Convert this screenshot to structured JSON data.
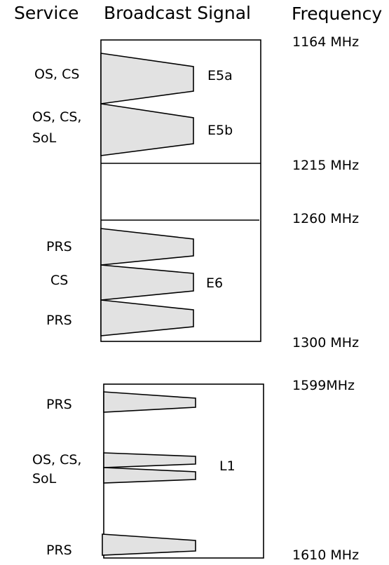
{
  "headers": {
    "service": "Service",
    "broadcast": "Broadcast Signal",
    "frequency": "Frequency"
  },
  "frequencies": {
    "f1164": "1164 MHz",
    "f1215": "1215 MHz",
    "f1260": "1260 MHz",
    "f1300": "1300 MHz",
    "f1599": "1599MHz",
    "f1610": "1610 MHz"
  },
  "signals": {
    "e5a": "E5a",
    "e5b": "E5b",
    "e6": "E6",
    "l1": "L1"
  },
  "services": {
    "e5a": [
      "OS, CS"
    ],
    "e5b": [
      "OS, CS,",
      "SoL"
    ],
    "e6_top": [
      "PRS"
    ],
    "e6_mid": [
      "CS"
    ],
    "e6_bot": [
      "PRS"
    ],
    "l1_top": [
      "PRS"
    ],
    "l1_mid": [
      "OS, CS,",
      "SoL"
    ],
    "l1_bot": [
      "PRS"
    ]
  },
  "colors": {
    "band_fill": "#e2e2e2",
    "stroke": "#000000"
  }
}
